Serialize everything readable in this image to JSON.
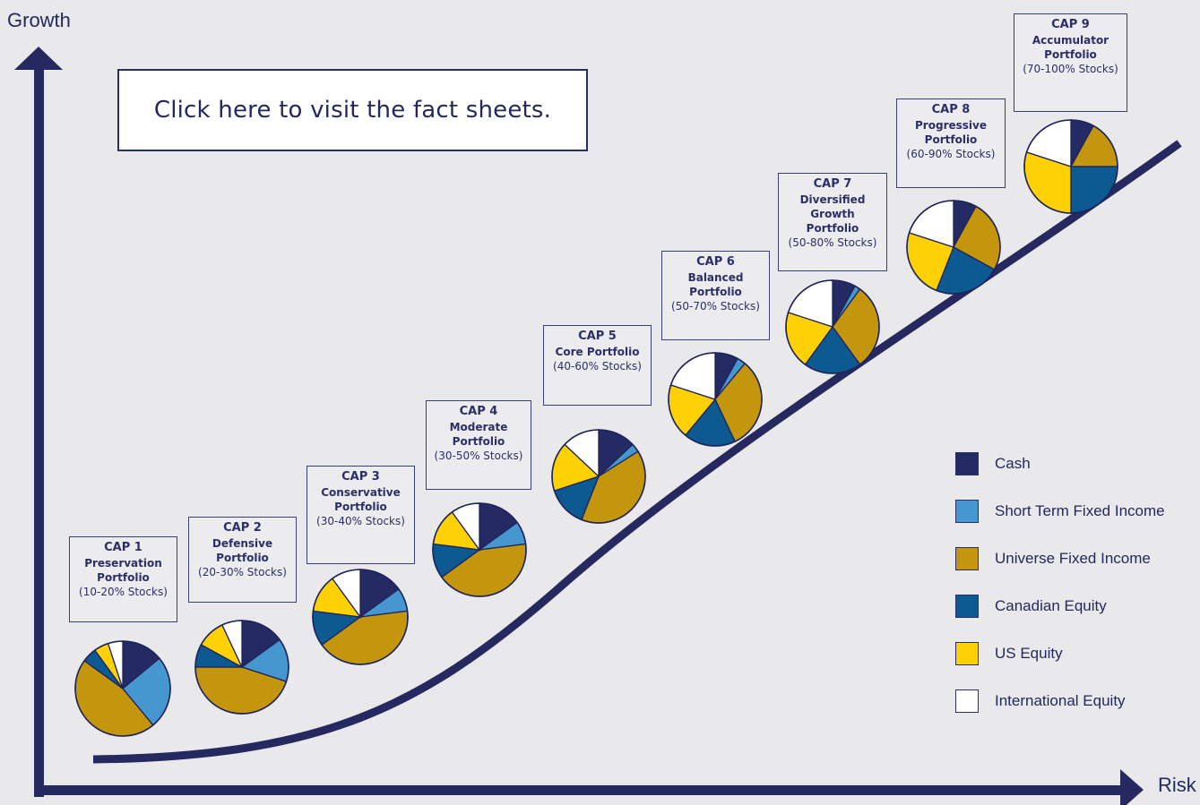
{
  "colors": {
    "axis": "#26295f",
    "curve": "#26295f",
    "cash": "#242a64",
    "short_term_fixed_income": "#4697cf",
    "universe_fixed_income": "#c4960d",
    "canadian_equity": "#0d5a93",
    "us_equity": "#fdd104",
    "international_equity": "#ffffff"
  },
  "axes": {
    "y_label": "Growth",
    "x_label": "Risk"
  },
  "cta": {
    "label": "Click here to visit the fact sheets."
  },
  "chart_data": {
    "type": "pie",
    "series_names": [
      "Cash",
      "Short Term Fixed Income",
      "Universe Fixed Income",
      "Canadian Equity",
      "US Equity",
      "International Equity"
    ],
    "portfolios": [
      {
        "code": "CAP 1",
        "name": "Preservation",
        "suffix": "Portfolio",
        "range": "(10-20% Stocks)",
        "values": [
          14,
          25,
          46,
          5,
          5,
          5
        ]
      },
      {
        "code": "CAP 2",
        "name": "Defensive",
        "suffix": "Portfolio",
        "range": "(20-30% Stocks)",
        "values": [
          15,
          15,
          45,
          8,
          10,
          7
        ]
      },
      {
        "code": "CAP 3",
        "name": "Conservative",
        "suffix": "Portfolio",
        "range": "(30-40% Stocks)",
        "values": [
          15,
          8,
          42,
          12,
          13,
          10
        ]
      },
      {
        "code": "CAP 4",
        "name": "Moderate",
        "suffix": "Portfolio",
        "range": "(30-50% Stocks)",
        "values": [
          15,
          8,
          42,
          12,
          13,
          10
        ]
      },
      {
        "code": "CAP 5",
        "name": "Core Portfolio",
        "suffix": "",
        "range": "(40-60% Stocks)",
        "values": [
          13,
          3,
          40,
          14,
          17,
          13
        ]
      },
      {
        "code": "CAP 6",
        "name": "Balanced",
        "suffix": "Portfolio",
        "range": "(50-70% Stocks)",
        "values": [
          8,
          3,
          32,
          18,
          19,
          20
        ]
      },
      {
        "code": "CAP 7",
        "name": "Diversified Growth",
        "suffix": "Portfolio",
        "range": "(50-80% Stocks)",
        "values": [
          8,
          2,
          30,
          20,
          20,
          20
        ]
      },
      {
        "code": "CAP 8",
        "name": "Progressive",
        "suffix": "Portfolio",
        "range": "(60-90% Stocks)",
        "values": [
          8,
          0,
          25,
          23,
          24,
          20
        ]
      },
      {
        "code": "CAP 9",
        "name": "Accumulator",
        "suffix": "Portfolio",
        "range": "(70-100% Stocks)",
        "values": [
          8,
          0,
          17,
          25,
          30,
          20
        ]
      }
    ]
  }
}
